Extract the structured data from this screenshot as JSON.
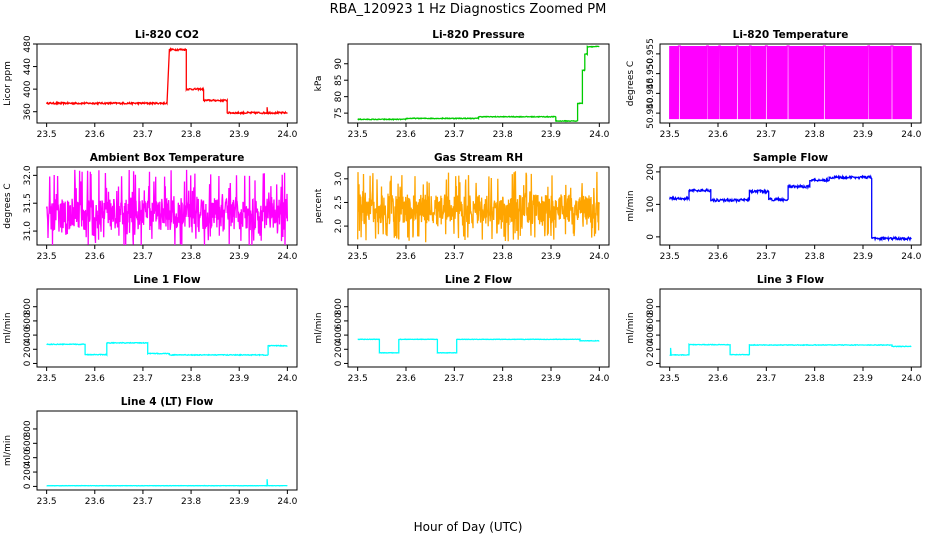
{
  "figure": {
    "title": "RBA_120923  1 Hz Diagnostics Zoomed PM",
    "xlabel": "Hour of Day (UTC)"
  },
  "chart_data": [
    {
      "type": "line",
      "title": "Li-820 CO2",
      "ylabel": "Licor ppm",
      "color": "#ff0000",
      "xlim": [
        23.5,
        24.0
      ],
      "ylim": [
        340,
        480
      ],
      "xticks": [
        "23.5",
        "23.6",
        "23.7",
        "23.8",
        "23.9",
        "24.0"
      ],
      "yticks": [
        360,
        400,
        440,
        480
      ],
      "noise": 1.5,
      "segments": [
        [
          23.5,
          23.75,
          375
        ],
        [
          23.755,
          23.79,
          470
        ],
        [
          23.79,
          23.826,
          400
        ],
        [
          23.826,
          23.875,
          380
        ],
        [
          23.875,
          24.0,
          358
        ]
      ],
      "spikes": [
        [
          23.958,
          368
        ]
      ]
    },
    {
      "type": "line",
      "title": "Li-820 Pressure",
      "ylabel": "kPa",
      "color": "#00cc00",
      "xlim": [
        23.5,
        24.0
      ],
      "ylim": [
        72,
        96
      ],
      "xticks": [
        "23.5",
        "23.6",
        "23.7",
        "23.8",
        "23.9",
        "24.0"
      ],
      "yticks": [
        75,
        80,
        85,
        90
      ],
      "noise": 0.12,
      "segments": [
        [
          23.5,
          23.6,
          73.1
        ],
        [
          23.6,
          23.75,
          73.4
        ],
        [
          23.75,
          23.91,
          73.9
        ],
        [
          23.91,
          23.955,
          72.6
        ],
        [
          23.955,
          23.965,
          78
        ],
        [
          23.965,
          23.97,
          88
        ],
        [
          23.97,
          23.975,
          93
        ],
        [
          23.975,
          24.0,
          95.2
        ]
      ]
    },
    {
      "type": "line",
      "title": "Li-820 Temperature",
      "ylabel": "degrees C",
      "color": "#ff00ff",
      "xlim": [
        23.5,
        24.0
      ],
      "ylim": [
        50.9375,
        50.9575
      ],
      "xticks": [
        "23.5",
        "23.6",
        "23.7",
        "23.8",
        "23.9",
        "24.0"
      ],
      "yticks": [
        50.94,
        50.945,
        50.95,
        50.955
      ],
      "ytick_labels": [
        "50.940",
        "50.945",
        "50.950",
        "50.955"
      ],
      "style": "toggle",
      "levels": [
        50.9385,
        50.957
      ],
      "gaps": [
        23.52,
        23.578,
        23.603,
        23.64,
        23.667,
        23.7,
        23.745,
        23.82,
        23.912,
        23.96
      ]
    },
    {
      "type": "line",
      "title": "Ambient Box Temperature",
      "ylabel": "degrees C",
      "color": "#ff00ff",
      "xlim": [
        23.5,
        24.0
      ],
      "ylim": [
        30.75,
        32.15
      ],
      "xticks": [
        "23.5",
        "23.6",
        "23.7",
        "23.8",
        "23.9",
        "24.0"
      ],
      "yticks": [
        31.0,
        31.5,
        32.0
      ],
      "ytick_labels": [
        "31.0",
        "31.5",
        "32.0"
      ],
      "style": "noise",
      "base": 31.3,
      "amplitude": 0.35,
      "extra_min": 30.85,
      "extra_max": 32.1
    },
    {
      "type": "line",
      "title": "Gas Stream RH",
      "ylabel": "percent",
      "color": "#ffa500",
      "xlim": [
        23.5,
        24.0
      ],
      "ylim": [
        1.6,
        3.25
      ],
      "xticks": [
        "23.5",
        "23.6",
        "23.7",
        "23.8",
        "23.9",
        "24.0"
      ],
      "yticks": [
        2.0,
        2.5,
        3.0
      ],
      "ytick_labels": [
        "2.0",
        "2.5",
        "3.0"
      ],
      "style": "noise",
      "base": 2.35,
      "amplitude": 0.4,
      "extra_min": 1.7,
      "extra_max": 3.2
    },
    {
      "type": "line",
      "title": "Sample Flow",
      "ylabel": "ml/min",
      "color": "#0000ff",
      "xlim": [
        23.5,
        24.0
      ],
      "ylim": [
        -25,
        215
      ],
      "xticks": [
        "23.5",
        "23.6",
        "23.7",
        "23.8",
        "23.9",
        "24.0"
      ],
      "yticks": [
        0,
        100,
        200
      ],
      "noise": 4,
      "segments": [
        [
          23.5,
          23.54,
          118
        ],
        [
          23.54,
          23.585,
          143
        ],
        [
          23.585,
          23.665,
          113
        ],
        [
          23.665,
          23.705,
          140
        ],
        [
          23.705,
          23.745,
          115
        ],
        [
          23.745,
          23.79,
          155
        ],
        [
          23.79,
          23.83,
          175
        ],
        [
          23.83,
          23.918,
          183
        ],
        [
          23.918,
          24.0,
          -5
        ]
      ]
    },
    {
      "type": "line",
      "title": "Line 1 Flow",
      "ylabel": "ml/min",
      "color": "#00ffff",
      "xlim": [
        23.5,
        24.0
      ],
      "ylim": [
        -50,
        1050
      ],
      "xticks": [
        "23.5",
        "23.6",
        "23.7",
        "23.8",
        "23.9",
        "24.0"
      ],
      "yticks": [
        0,
        200,
        400,
        600,
        800
      ],
      "noise": 5,
      "segments": [
        [
          23.5,
          23.58,
          270
        ],
        [
          23.58,
          23.625,
          125
        ],
        [
          23.625,
          23.71,
          290
        ],
        [
          23.71,
          23.755,
          140
        ],
        [
          23.755,
          23.96,
          120
        ],
        [
          23.96,
          24.0,
          250
        ]
      ]
    },
    {
      "type": "line",
      "title": "Line 2 Flow",
      "ylabel": "ml/min",
      "color": "#00ffff",
      "xlim": [
        23.5,
        24.0
      ],
      "ylim": [
        -50,
        1050
      ],
      "xticks": [
        "23.5",
        "23.6",
        "23.7",
        "23.8",
        "23.9",
        "24.0"
      ],
      "yticks": [
        0,
        200,
        400,
        600,
        800
      ],
      "noise": 3,
      "segments": [
        [
          23.5,
          23.545,
          340
        ],
        [
          23.545,
          23.585,
          150
        ],
        [
          23.585,
          23.665,
          340
        ],
        [
          23.665,
          23.705,
          150
        ],
        [
          23.705,
          23.96,
          340
        ],
        [
          23.96,
          24.0,
          320
        ]
      ]
    },
    {
      "type": "line",
      "title": "Line 3 Flow",
      "ylabel": "ml/min",
      "color": "#00ffff",
      "xlim": [
        23.5,
        24.0
      ],
      "ylim": [
        -50,
        1050
      ],
      "xticks": [
        "23.5",
        "23.6",
        "23.7",
        "23.8",
        "23.9",
        "24.0"
      ],
      "yticks": [
        0,
        200,
        400,
        600,
        800
      ],
      "noise": 4,
      "segments": [
        [
          23.5,
          23.54,
          120
        ],
        [
          23.54,
          23.625,
          265
        ],
        [
          23.625,
          23.665,
          125
        ],
        [
          23.665,
          23.96,
          260
        ],
        [
          23.96,
          24.0,
          240
        ]
      ],
      "spikes": [
        [
          23.502,
          220
        ]
      ]
    },
    {
      "type": "line",
      "title": "Line 4 (LT) Flow",
      "ylabel": "ml/min",
      "color": "#00ffff",
      "xlim": [
        23.5,
        24.0
      ],
      "ylim": [
        -50,
        1050
      ],
      "xticks": [
        "23.5",
        "23.6",
        "23.7",
        "23.8",
        "23.9",
        "24.0"
      ],
      "yticks": [
        0,
        200,
        400,
        600,
        800
      ],
      "noise": 2,
      "segments": [
        [
          23.5,
          24.0,
          10
        ]
      ],
      "spikes": [
        [
          23.958,
          100
        ]
      ]
    }
  ]
}
